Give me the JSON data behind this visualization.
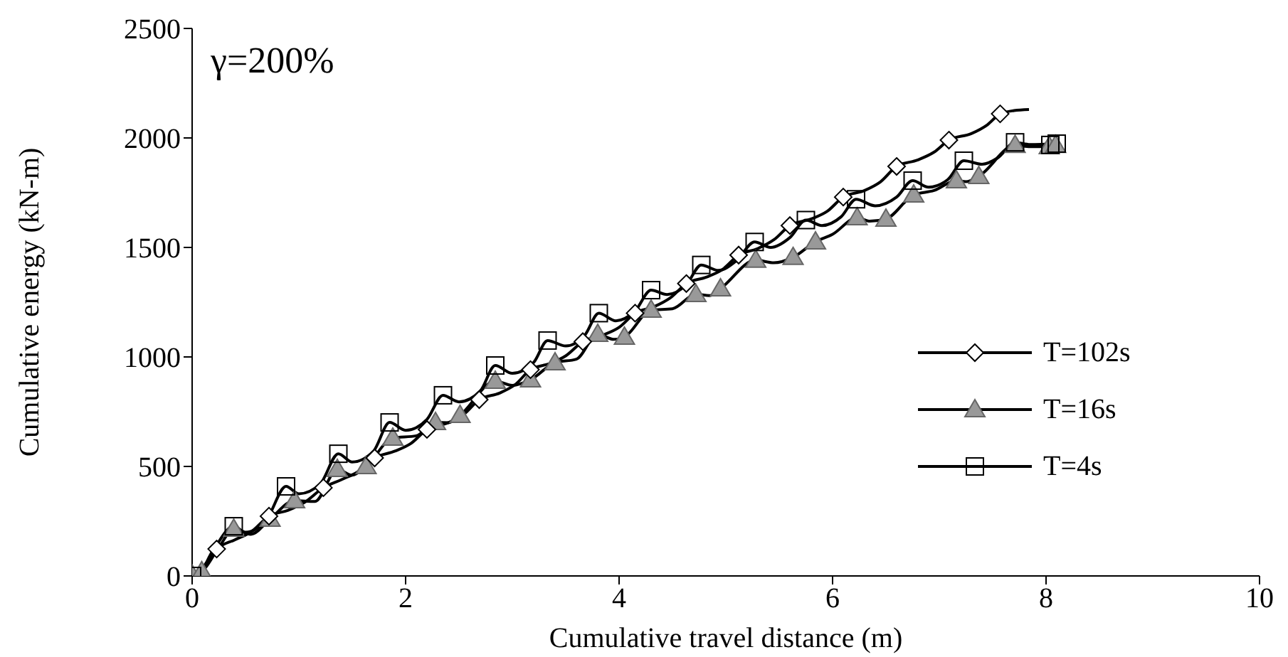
{
  "chart_data": {
    "type": "line",
    "xlabel": "Cumulative travel distance (m)",
    "ylabel": "Cumulative energy (kN-m)",
    "annotations": [
      "γ=200%"
    ],
    "xlim": [
      0,
      10
    ],
    "xticks": [
      0,
      2,
      4,
      6,
      8,
      10
    ],
    "ylim": [
      0,
      2500
    ],
    "yticks": [
      0,
      500,
      1000,
      1500,
      2000,
      2500
    ],
    "grid": false,
    "legend": "right",
    "series": [
      {
        "color": "#000000",
        "marker": "none",
        "x": [
          0,
          0.1,
          0.23,
          0.4,
          0.55,
          0.72,
          0.9,
          1.05,
          1.23,
          1.4,
          1.55,
          1.71,
          1.9,
          2.05,
          2.2,
          2.4,
          2.55,
          2.69,
          2.88,
          3.03,
          3.17,
          3.35,
          3.5,
          3.66,
          3.85,
          4.0,
          4.15,
          4.33,
          4.48,
          4.63,
          4.82,
          4.97,
          5.12,
          5.3,
          5.45,
          5.6,
          5.8,
          5.95,
          6.1,
          6.3,
          6.45,
          6.6,
          6.8,
          6.95,
          7.09,
          7.3,
          7.45,
          7.57,
          7.7,
          7.84
        ],
        "values": [
          0,
          40,
          123,
          165,
          200,
          273,
          300,
          335,
          403,
          440,
          475,
          539,
          570,
          605,
          669,
          700,
          740,
          805,
          835,
          875,
          942,
          970,
          1005,
          1070,
          1100,
          1135,
          1200,
          1230,
          1270,
          1335,
          1365,
          1400,
          1465,
          1495,
          1535,
          1600,
          1630,
          1665,
          1730,
          1760,
          1800,
          1870,
          1900,
          1935,
          1990,
          2020,
          2060,
          2110,
          2125,
          2130
        ]
      },
      {
        "color": "#000000",
        "marker": "none",
        "x": [
          0,
          0.09,
          0.25,
          0.39,
          0.55,
          0.73,
          0.96,
          1.15,
          1.36,
          1.5,
          1.63,
          1.88,
          2.1,
          2.28,
          2.4,
          2.51,
          2.84,
          3.0,
          3.17,
          3.4,
          3.6,
          3.8,
          3.95,
          4.05,
          4.3,
          4.5,
          4.72,
          4.85,
          4.95,
          5.28,
          5.45,
          5.63,
          5.84,
          6.0,
          6.23,
          6.35,
          6.5,
          6.76,
          6.95,
          7.16,
          7.25,
          7.37,
          7.71,
          7.85,
          8.03,
          8.09
        ],
        "values": [
          5,
          20,
          130,
          214,
          190,
          260,
          344,
          340,
          487,
          460,
          500,
          630,
          640,
          701,
          700,
          734,
          890,
          870,
          896,
          974,
          990,
          1104,
          1080,
          1091,
          1214,
          1220,
          1286,
          1280,
          1312,
          1442,
          1430,
          1455,
          1526,
          1560,
          1636,
          1620,
          1630,
          1740,
          1760,
          1805,
          1800,
          1825,
          1967,
          1960,
          1961,
          1967
        ]
      },
      {
        "color": "#000000",
        "marker": "none",
        "x": [
          0,
          0.04,
          0.2,
          0.39,
          0.5,
          0.7,
          0.88,
          1.0,
          1.2,
          1.37,
          1.5,
          1.7,
          1.85,
          2.0,
          2.2,
          2.35,
          2.5,
          2.7,
          2.84,
          3.0,
          3.2,
          3.33,
          3.5,
          3.68,
          3.81,
          3.97,
          4.15,
          4.3,
          4.45,
          4.63,
          4.77,
          4.93,
          5.1,
          5.27,
          5.42,
          5.6,
          5.75,
          5.9,
          6.08,
          6.22,
          6.4,
          6.6,
          6.75,
          6.9,
          7.08,
          7.23,
          7.4,
          7.55,
          7.71,
          7.85,
          8.1
        ],
        "values": [
          0,
          0,
          120,
          227,
          200,
          260,
          409,
          375,
          420,
          558,
          520,
          570,
          701,
          665,
          715,
          825,
          795,
          845,
          961,
          925,
          975,
          1075,
          1050,
          1100,
          1200,
          1165,
          1210,
          1305,
          1285,
          1330,
          1420,
          1395,
          1440,
          1525,
          1500,
          1545,
          1625,
          1600,
          1640,
          1720,
          1690,
          1730,
          1805,
          1775,
          1810,
          1896,
          1880,
          1910,
          1980,
          1970,
          1974
        ]
      },
      {
        "type": "scatter",
        "name": "T=102s",
        "color": "#000000",
        "marker": "diamond",
        "x": [
          0.23,
          0.72,
          1.23,
          1.71,
          2.2,
          2.69,
          3.17,
          3.66,
          4.15,
          4.63,
          5.12,
          5.6,
          6.1,
          6.6,
          7.09,
          7.57
        ],
        "values": [
          123,
          273,
          403,
          539,
          669,
          805,
          942,
          1070,
          1200,
          1335,
          1465,
          1600,
          1730,
          1870,
          1990,
          2110
        ]
      },
      {
        "type": "scatter",
        "name": "T=16s",
        "color": "#999999",
        "marker": "triangle",
        "x": [
          0,
          0.09,
          0.39,
          0.73,
          0.96,
          1.36,
          1.63,
          1.88,
          2.28,
          2.51,
          2.84,
          3.17,
          3.4,
          3.8,
          4.05,
          4.3,
          4.72,
          4.95,
          5.28,
          5.63,
          5.84,
          6.23,
          6.5,
          6.76,
          7.16,
          7.37,
          7.71,
          8.03,
          8.09
        ],
        "values": [
          5,
          20,
          214,
          260,
          344,
          487,
          500,
          630,
          701,
          734,
          890,
          896,
          974,
          1104,
          1091,
          1214,
          1286,
          1312,
          1442,
          1455,
          1526,
          1636,
          1630,
          1740,
          1805,
          1825,
          1967,
          1961,
          1967
        ]
      },
      {
        "type": "scatter",
        "name": "T=4s",
        "color": "#000000",
        "marker": "square",
        "x": [
          0,
          0.39,
          0.88,
          1.37,
          1.85,
          2.35,
          2.84,
          3.33,
          3.81,
          4.3,
          4.77,
          5.27,
          5.75,
          6.22,
          6.75,
          7.23,
          7.71,
          8.04,
          8.1
        ],
        "values": [
          0,
          227,
          409,
          558,
          701,
          825,
          961,
          1075,
          1200,
          1305,
          1420,
          1525,
          1625,
          1720,
          1805,
          1896,
          1980,
          1968,
          1974
        ]
      }
    ]
  }
}
